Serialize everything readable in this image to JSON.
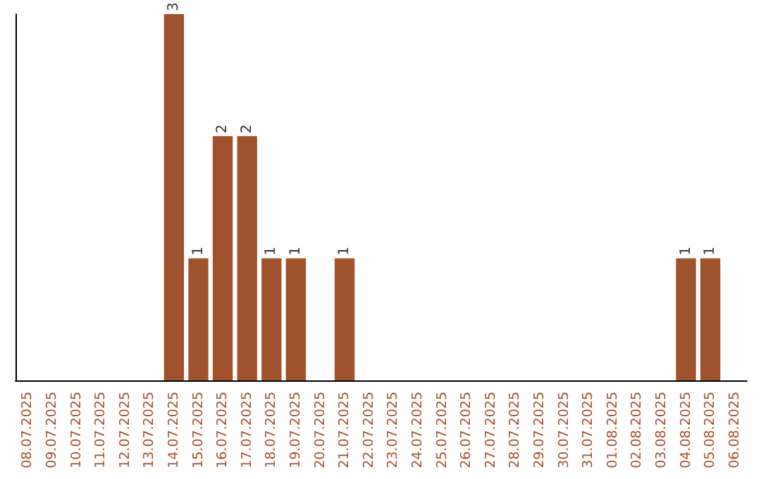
{
  "chart_data": {
    "type": "bar",
    "categories": [
      "08.07.2025",
      "09.07.2025",
      "10.07.2025",
      "11.07.2025",
      "12.07.2025",
      "13.07.2025",
      "14.07.2025",
      "15.07.2025",
      "16.07.2025",
      "17.07.2025",
      "18.07.2025",
      "19.07.2025",
      "20.07.2025",
      "21.07.2025",
      "22.07.2025",
      "23.07.2025",
      "24.07.2025",
      "25.07.2025",
      "26.07.2025",
      "27.07.2025",
      "28.07.2025",
      "29.07.2025",
      "30.07.2025",
      "31.07.2025",
      "01.08.2025",
      "02.08.2025",
      "03.08.2025",
      "04.08.2025",
      "05.08.2025",
      "06.08.2025"
    ],
    "values": [
      0,
      0,
      0,
      0,
      0,
      0,
      3,
      1,
      2,
      2,
      1,
      1,
      0,
      1,
      0,
      0,
      0,
      0,
      0,
      0,
      0,
      0,
      0,
      0,
      0,
      0,
      0,
      1,
      1,
      0
    ],
    "value_labels": [
      null,
      null,
      null,
      null,
      null,
      null,
      "3",
      "1",
      "2",
      "2",
      "1",
      "1",
      null,
      "1",
      null,
      null,
      null,
      null,
      null,
      null,
      null,
      null,
      null,
      null,
      null,
      null,
      null,
      "1",
      "1",
      null
    ],
    "color": "#a0522d"
  }
}
